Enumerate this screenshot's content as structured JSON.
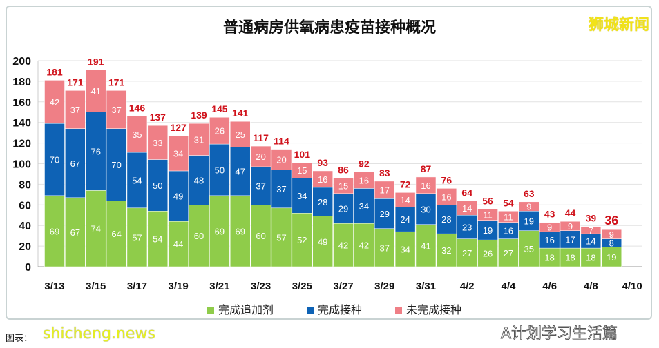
{
  "chart_data": {
    "type": "stacked-bar",
    "title": "普通病房供氧病患疫苗接种概况",
    "categories": [
      "3/13",
      "3/14",
      "3/15",
      "3/16",
      "3/17",
      "3/18",
      "3/19",
      "3/20",
      "3/21",
      "3/22",
      "3/23",
      "3/24",
      "3/25",
      "3/26",
      "3/27",
      "3/28",
      "3/29",
      "3/30",
      "3/31",
      "4/1",
      "4/2",
      "4/3",
      "4/4",
      "4/5",
      "4/6",
      "4/7",
      "4/8",
      "4/9"
    ],
    "xtick_labels": [
      "3/13",
      "3/15",
      "3/17",
      "3/19",
      "3/21",
      "3/23",
      "3/25",
      "3/27",
      "3/29",
      "3/31",
      "4/2",
      "4/4",
      "4/6",
      "4/8",
      "4/10"
    ],
    "yticks": [
      0,
      20,
      40,
      60,
      80,
      100,
      120,
      140,
      160,
      180,
      200
    ],
    "ylim": [
      0,
      200
    ],
    "grid": true,
    "legend_position": "bottom",
    "series": [
      {
        "name": "完成追加剂",
        "color": "#8fcc4a",
        "values": [
          69,
          67,
          74,
          64,
          57,
          54,
          44,
          60,
          69,
          69,
          60,
          57,
          52,
          49,
          42,
          42,
          37,
          34,
          41,
          32,
          27,
          26,
          27,
          35,
          18,
          18,
          18,
          19
        ]
      },
      {
        "name": "完成接种",
        "color": "#0e62b5",
        "values": [
          70,
          67,
          76,
          70,
          54,
          50,
          49,
          48,
          50,
          47,
          37,
          37,
          34,
          28,
          29,
          34,
          29,
          24,
          30,
          28,
          23,
          19,
          16,
          19,
          16,
          17,
          14,
          8
        ]
      },
      {
        "name": "未完成接种",
        "color": "#ef7f86",
        "values": [
          42,
          37,
          41,
          37,
          35,
          33,
          34,
          31,
          26,
          25,
          20,
          20,
          15,
          16,
          15,
          16,
          17,
          14,
          16,
          16,
          14,
          11,
          11,
          9,
          9,
          9,
          7,
          9
        ]
      }
    ],
    "totals": [
      181,
      171,
      191,
      171,
      146,
      137,
      127,
      139,
      145,
      141,
      117,
      114,
      101,
      93,
      86,
      92,
      83,
      72,
      87,
      76,
      64,
      56,
      54,
      63,
      43,
      44,
      39,
      36
    ]
  },
  "logo": "狮城新闻",
  "watermark_site": "shicheng.news",
  "watermark_account": "A计划学习生活篇",
  "credit": "图表："
}
